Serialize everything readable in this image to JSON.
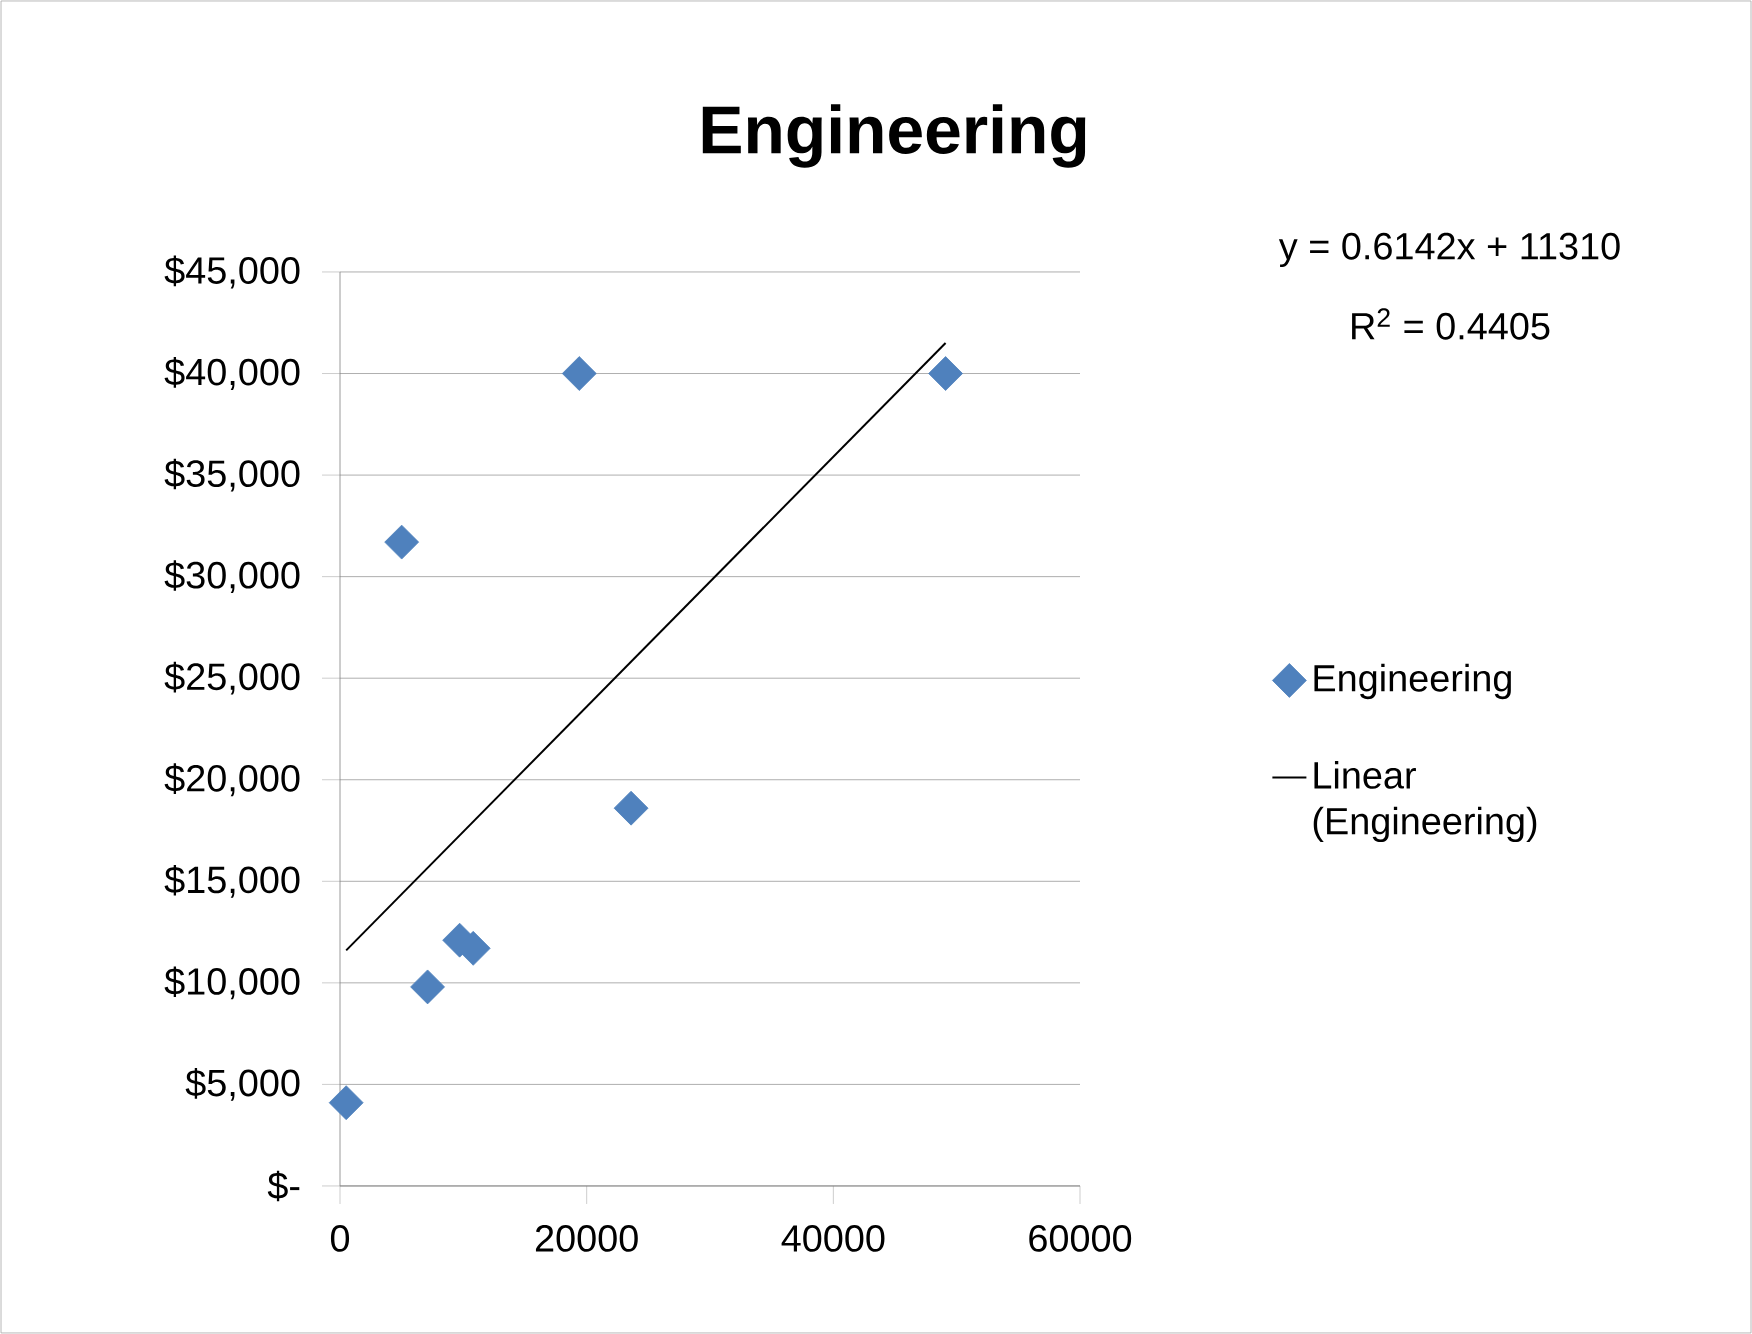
{
  "chart_data": {
    "type": "scatter",
    "title": "Engineering",
    "annotations": [
      "y = 0.6142x + 11310",
      "R$^{2}$ = 0.4405"
    ],
    "series": [
      {
        "name": "Engineering",
        "color": "#4f81bd",
        "marker": "diamond",
        "x": [
          500,
          5000,
          19400,
          49100,
          7100,
          9700,
          10800,
          23600
        ],
        "values": [
          4100,
          31700,
          40000,
          40000,
          9800,
          12100,
          11700,
          18600
        ]
      },
      {
        "name": "Linear (Engineering)",
        "type": "line",
        "color": "#000000",
        "line_style": "solid",
        "marker": "none",
        "x": [
          500,
          49100
        ],
        "values": [
          11600,
          41500
        ]
      }
    ],
    "xlim": [
      0,
      60000
    ],
    "ylim": [
      0,
      45000
    ],
    "xticks": [
      0,
      20000,
      40000,
      60000
    ],
    "yticks": [
      {
        "value": 0,
        "label": "$-"
      },
      {
        "value": 5000,
        "label": "$5,000"
      },
      {
        "value": 10000,
        "label": "$10,000"
      },
      {
        "value": 15000,
        "label": "$15,000"
      },
      {
        "value": 20000,
        "label": "$20,000"
      },
      {
        "value": 25000,
        "label": "$25,000"
      },
      {
        "value": 30000,
        "label": "$30,000"
      },
      {
        "value": 35000,
        "label": "$35,000"
      },
      {
        "value": 40000,
        "label": "$40,000"
      },
      {
        "value": 45000,
        "label": "$45,000"
      }
    ],
    "grid": "y",
    "legend": "right"
  }
}
